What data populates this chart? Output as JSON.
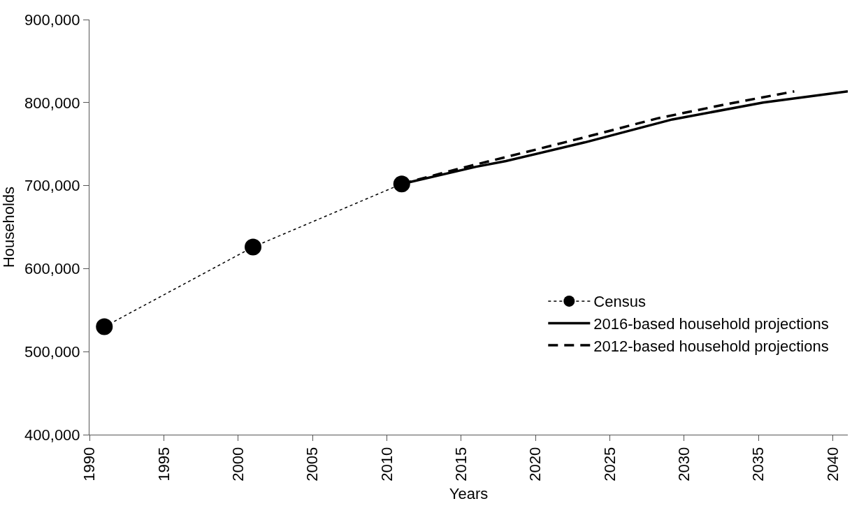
{
  "chart_data": {
    "type": "line",
    "xlabel": "Years",
    "ylabel": "Households",
    "xlim": [
      1990,
      2041
    ],
    "xticks": [
      1990,
      1995,
      2000,
      2005,
      2010,
      2015,
      2020,
      2025,
      2030,
      2035,
      2040
    ],
    "ylim": [
      400000,
      900000
    ],
    "yticks": [
      {
        "value": 400000,
        "label": "400,000"
      },
      {
        "value": 500000,
        "label": "500,000"
      },
      {
        "value": 600000,
        "label": "600,000"
      },
      {
        "value": 700000,
        "label": "700,000"
      },
      {
        "value": 800000,
        "label": "800,000"
      },
      {
        "value": 900000,
        "label": "900,000"
      }
    ],
    "grid": false,
    "legend": "bottom right",
    "series": [
      {
        "name": "Census",
        "color": "#000000",
        "marker": "circle",
        "line_style": "dashed",
        "x": [
          1991,
          2001,
          2011
        ],
        "values": [
          530000,
          626000,
          702000
        ]
      },
      {
        "name": "2016-based household projections",
        "color": "#000000",
        "marker": "none",
        "line_style": "solid",
        "x": [
          2011,
          2016,
          2018,
          2023.3,
          2029.2,
          2035.3,
          2041
        ],
        "values": [
          702000,
          722700,
          729500,
          752000,
          779700,
          800000,
          813500
        ]
      },
      {
        "name": "2012-based household projections",
        "color": "#000000",
        "marker": "none",
        "line_style": "dashed",
        "x": [
          2011,
          2014.7,
          2019.2,
          2023.7,
          2028.2,
          2032.7,
          2037.4
        ],
        "values": [
          702000,
          719700,
          739700,
          760000,
          781000,
          797600,
          813500
        ]
      }
    ]
  }
}
